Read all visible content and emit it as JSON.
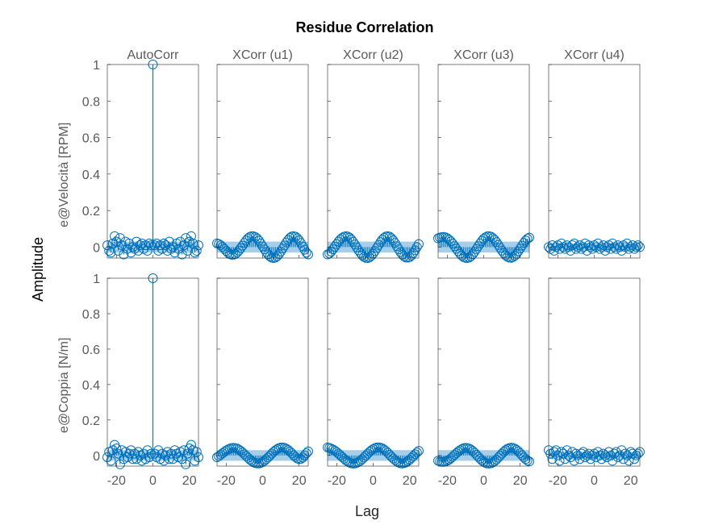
{
  "title": "Residue Correlation",
  "xlabel": "Lag",
  "ylabel": "Amplitude",
  "colors": {
    "stem": "#0072BD",
    "band": "#A6CEE8",
    "axis": "#262626",
    "label": "#5a5a5a"
  },
  "columns": [
    "AutoCorr",
    "XCorr (u1)",
    "XCorr (u2)",
    "XCorr (u3)",
    "XCorr (u4)"
  ],
  "rows": [
    "e@Velocità [RPM]",
    "e@Coppia [N/m]"
  ],
  "yticks": [
    "0",
    "0.2",
    "0.4",
    "0.6",
    "0.8",
    "1"
  ],
  "xticks": [
    "-20",
    "0",
    "20"
  ],
  "chart_data": {
    "type": "stem",
    "layout": "2x5 grid",
    "xlim": [
      -25,
      25
    ],
    "ylim": [
      -0.06,
      1.0
    ],
    "x": [
      -25,
      -24,
      -23,
      -22,
      -21,
      -20,
      -19,
      -18,
      -17,
      -16,
      -15,
      -14,
      -13,
      -12,
      -11,
      -10,
      -9,
      -8,
      -7,
      -6,
      -5,
      -4,
      -3,
      -2,
      -1,
      0,
      1,
      2,
      3,
      4,
      5,
      6,
      7,
      8,
      9,
      10,
      11,
      12,
      13,
      14,
      15,
      16,
      17,
      18,
      19,
      20,
      21,
      22,
      23,
      24,
      25
    ],
    "confidence_band": [
      [
        0.03,
        0.03,
        0.03,
        0.03,
        0.02
      ],
      [
        0.03,
        0.03,
        0.03,
        0.03,
        0.02
      ]
    ],
    "panels": [
      [
        {
          "row": "e@Velocità [RPM]",
          "col": "AutoCorr",
          "values": [
            0.01,
            -0.02,
            -0.03,
            0.02,
            0.06,
            0.03,
            -0.02,
            0.05,
            0.01,
            -0.04,
            0.03,
            -0.01,
            0.02,
            -0.03,
            0.0,
            -0.01,
            0.03,
            -0.02,
            0.01,
            0.02,
            -0.01,
            0.01,
            -0.02,
            0.02,
            0.01,
            1.0,
            0.01,
            0.02,
            -0.02,
            0.01,
            -0.01,
            0.02,
            0.01,
            -0.02,
            0.03,
            -0.01,
            0.0,
            -0.03,
            0.02,
            -0.01,
            0.03,
            -0.04,
            0.01,
            0.05,
            -0.02,
            0.03,
            0.06,
            0.02,
            -0.03,
            -0.02,
            0.01
          ]
        },
        {
          "row": "e@Velocità [RPM]",
          "col": "XCorr (u1)",
          "values": [
            0.02,
            0.017,
            0.01,
            0.001,
            -0.01,
            -0.021,
            -0.031,
            -0.038,
            -0.042,
            -0.042,
            -0.038,
            -0.03,
            -0.019,
            -0.006,
            0.008,
            0.023,
            0.036,
            0.048,
            0.056,
            0.06,
            0.059,
            0.055,
            0.047,
            0.035,
            0.02,
            0.004,
            -0.012,
            -0.027,
            -0.04,
            -0.051,
            -0.058,
            -0.06,
            -0.057,
            -0.05,
            -0.038,
            -0.024,
            -0.008,
            0.009,
            0.025,
            0.039,
            0.051,
            0.058,
            0.06,
            0.057,
            0.049,
            0.037,
            0.022,
            0.004,
            -0.014,
            -0.03,
            -0.04
          ]
        },
        {
          "row": "e@Velocità [RPM]",
          "col": "XCorr (u2)",
          "values": [
            -0.04,
            -0.035,
            -0.025,
            -0.012,
            0.002,
            0.016,
            0.03,
            0.042,
            0.051,
            0.057,
            0.06,
            0.058,
            0.052,
            0.042,
            0.029,
            0.014,
            -0.002,
            -0.018,
            -0.032,
            -0.045,
            -0.054,
            -0.059,
            -0.06,
            -0.056,
            -0.048,
            -0.036,
            -0.021,
            -0.005,
            0.011,
            0.027,
            0.041,
            0.051,
            0.058,
            0.06,
            0.057,
            0.049,
            0.037,
            0.022,
            0.005,
            -0.012,
            -0.028,
            -0.041,
            -0.051,
            -0.057,
            -0.058,
            -0.055,
            -0.046,
            -0.033,
            -0.017,
            0.0,
            0.016
          ]
        },
        {
          "row": "e@Velocità [RPM]",
          "col": "XCorr (u3)",
          "values": [
            0.048,
            0.052,
            0.055,
            0.056,
            0.054,
            0.049,
            0.041,
            0.031,
            0.019,
            0.005,
            -0.009,
            -0.023,
            -0.036,
            -0.047,
            -0.055,
            -0.059,
            -0.06,
            -0.057,
            -0.05,
            -0.039,
            -0.026,
            -0.011,
            0.005,
            0.02,
            0.034,
            0.046,
            0.054,
            0.059,
            0.06,
            0.057,
            0.05,
            0.04,
            0.027,
            0.012,
            -0.004,
            -0.019,
            -0.033,
            -0.045,
            -0.053,
            -0.058,
            -0.059,
            -0.055,
            -0.048,
            -0.037,
            -0.023,
            -0.008,
            0.008,
            0.023,
            0.036,
            0.046,
            0.052
          ]
        },
        {
          "row": "e@Velocità [RPM]",
          "col": "XCorr (u4)",
          "values": [
            0.0,
            -0.01,
            0.01,
            -0.02,
            0.0,
            0.01,
            -0.01,
            0.02,
            0.0,
            -0.01,
            0.01,
            0.0,
            -0.02,
            0.01,
            0.02,
            -0.01,
            0.0,
            0.01,
            -0.01,
            0.0,
            0.02,
            -0.02,
            0.01,
            0.0,
            -0.01,
            0.01,
            0.0,
            0.02,
            -0.01,
            0.0,
            0.01,
            -0.02,
            0.0,
            0.01,
            -0.01,
            0.02,
            0.0,
            -0.01,
            0.01,
            0.0,
            -0.02,
            0.01,
            0.0,
            0.02,
            -0.01,
            0.0,
            0.01,
            -0.01,
            0.0,
            0.01,
            0.0
          ]
        }
      ],
      [
        {
          "row": "e@Coppia [N/m]",
          "col": "AutoCorr",
          "values": [
            -0.01,
            0.02,
            -0.03,
            0.03,
            0.06,
            0.04,
            0.01,
            -0.05,
            0.03,
            -0.02,
            0.02,
            -0.01,
            0.01,
            0.03,
            -0.02,
            0.01,
            -0.02,
            0.02,
            0.0,
            -0.03,
            0.01,
            -0.02,
            0.03,
            -0.01,
            0.01,
            1.0,
            0.01,
            -0.01,
            0.03,
            -0.02,
            0.01,
            -0.03,
            0.0,
            0.02,
            -0.02,
            0.01,
            -0.02,
            0.03,
            0.01,
            -0.01,
            0.02,
            -0.02,
            0.03,
            -0.05,
            0.01,
            0.04,
            0.06,
            0.03,
            -0.03,
            0.02,
            -0.01
          ]
        },
        {
          "row": "e@Coppia [N/m]",
          "col": "XCorr (u1)",
          "values": [
            -0.01,
            -0.004,
            0.004,
            0.012,
            0.02,
            0.028,
            0.034,
            0.039,
            0.042,
            0.043,
            0.042,
            0.039,
            0.033,
            0.026,
            0.017,
            0.007,
            -0.003,
            -0.013,
            -0.023,
            -0.031,
            -0.038,
            -0.043,
            -0.045,
            -0.045,
            -0.042,
            -0.037,
            -0.03,
            -0.021,
            -0.011,
            -0.001,
            0.01,
            0.02,
            0.029,
            0.036,
            0.042,
            0.045,
            0.045,
            0.043,
            0.038,
            0.031,
            0.022,
            0.012,
            0.001,
            -0.009,
            -0.017,
            -0.021,
            -0.019,
            -0.012,
            0.001,
            0.012,
            0.023
          ]
        },
        {
          "row": "e@Coppia [N/m]",
          "col": "XCorr (u2)",
          "values": [
            0.045,
            0.043,
            0.039,
            0.034,
            0.027,
            0.019,
            0.01,
            0.001,
            -0.009,
            -0.018,
            -0.027,
            -0.034,
            -0.04,
            -0.044,
            -0.046,
            -0.045,
            -0.042,
            -0.037,
            -0.03,
            -0.021,
            -0.011,
            -0.001,
            0.01,
            0.02,
            0.029,
            0.036,
            0.042,
            0.045,
            0.046,
            0.044,
            0.04,
            0.033,
            0.025,
            0.015,
            0.004,
            -0.007,
            -0.017,
            -0.026,
            -0.034,
            -0.04,
            -0.044,
            -0.045,
            -0.043,
            -0.039,
            -0.032,
            -0.024,
            -0.014,
            -0.004,
            0.007,
            0.017,
            0.026
          ]
        },
        {
          "row": "e@Coppia [N/m]",
          "col": "XCorr (u3)",
          "values": [
            -0.03,
            -0.034,
            -0.036,
            -0.036,
            -0.034,
            -0.03,
            -0.024,
            -0.016,
            -0.007,
            0.003,
            0.013,
            0.022,
            0.03,
            0.036,
            0.041,
            0.043,
            0.042,
            0.039,
            0.033,
            0.025,
            0.015,
            0.004,
            -0.007,
            -0.018,
            -0.028,
            -0.036,
            -0.042,
            -0.045,
            -0.046,
            -0.044,
            -0.039,
            -0.032,
            -0.023,
            -0.012,
            -0.001,
            0.01,
            0.021,
            0.03,
            0.037,
            0.042,
            0.044,
            0.043,
            0.039,
            0.032,
            0.023,
            0.012,
            0.001,
            -0.011,
            -0.021,
            -0.029,
            -0.034
          ]
        },
        {
          "row": "e@Coppia [N/m]",
          "col": "XCorr (u4)",
          "values": [
            0.03,
            0.01,
            -0.02,
            0.02,
            0.03,
            0.0,
            -0.03,
            0.02,
            0.01,
            -0.02,
            0.03,
            0.0,
            -0.01,
            0.02,
            -0.03,
            0.01,
            0.0,
            -0.02,
            0.01,
            0.02,
            -0.01,
            0.0,
            0.01,
            -0.02,
            0.0,
            0.01,
            -0.01,
            0.02,
            0.0,
            -0.02,
            0.01,
            0.0,
            -0.01,
            0.02,
            0.0,
            -0.03,
            0.01,
            0.02,
            -0.01,
            0.0,
            0.03,
            -0.02,
            0.01,
            0.0,
            -0.03,
            0.02,
            0.01,
            -0.02,
            0.0,
            0.01,
            0.02
          ]
        }
      ]
    ]
  }
}
